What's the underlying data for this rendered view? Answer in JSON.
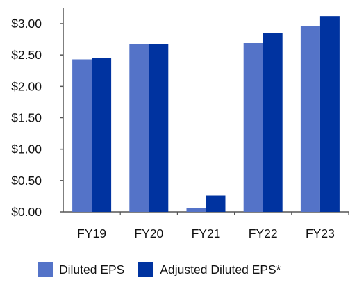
{
  "chart_data": {
    "type": "bar",
    "title": "",
    "xlabel": "",
    "ylabel": "",
    "categories": [
      "FY19",
      "FY20",
      "FY21",
      "FY22",
      "FY23"
    ],
    "series": [
      {
        "name": "Diluted EPS",
        "color": "#5473c8",
        "values": [
          2.43,
          2.67,
          0.06,
          2.69,
          2.96
        ]
      },
      {
        "name": "Adjusted Diluted EPS*",
        "color": "#0033a0",
        "values": [
          2.45,
          2.67,
          0.26,
          2.85,
          3.12
        ]
      }
    ],
    "ylim": [
      0,
      3.25
    ],
    "yticks": [
      0,
      0.5,
      1.0,
      1.5,
      2.0,
      2.5,
      3.0
    ],
    "ytick_labels": [
      "$0.00",
      "$0.50",
      "$1.00",
      "$1.50",
      "$2.00",
      "$2.50",
      "$3.00"
    ],
    "grid": false,
    "legend_position": "bottom"
  }
}
